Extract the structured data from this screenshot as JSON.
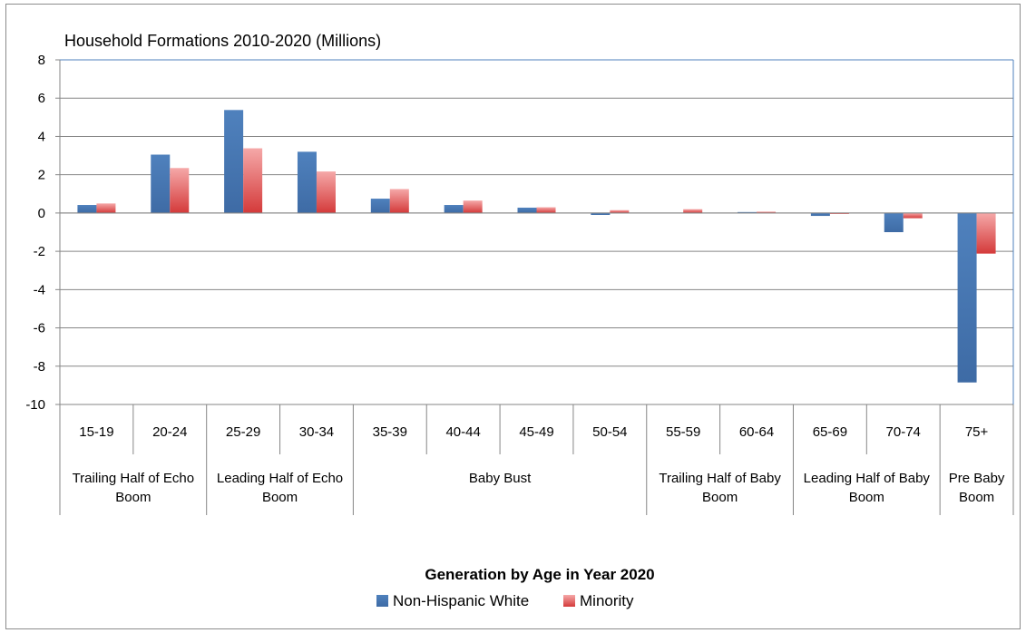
{
  "chart_data": {
    "type": "bar",
    "title": "Household Formations 2010-2020 (Millions)",
    "xlabel": "Generation by Age in Year 2020",
    "ylabel": "",
    "ylim": [
      -10,
      8
    ],
    "yticks": [
      8,
      6,
      4,
      2,
      0,
      -2,
      -4,
      -6,
      -8,
      -10
    ],
    "grid": true,
    "legend_position": "bottom",
    "categories": [
      "15-19",
      "20-24",
      "25-29",
      "30-34",
      "35-39",
      "40-44",
      "45-49",
      "50-54",
      "55-59",
      "60-64",
      "65-69",
      "70-74",
      "75+"
    ],
    "groups": [
      {
        "label_lines": [
          "Trailing Half of Echo",
          "Boom"
        ],
        "span": 2
      },
      {
        "label_lines": [
          "Leading Half of Echo",
          "Boom"
        ],
        "span": 2
      },
      {
        "label_lines": [
          "Baby Bust"
        ],
        "span": 4
      },
      {
        "label_lines": [
          "Trailing Half of Baby",
          "Boom"
        ],
        "span": 2
      },
      {
        "label_lines": [
          "Leading Half of Baby",
          "Boom"
        ],
        "span": 2
      },
      {
        "label_lines": [
          "Pre Baby",
          "Boom"
        ],
        "span": 1
      }
    ],
    "series": [
      {
        "name": "Non-Hispanic White",
        "color": "#4f81bd",
        "values": [
          0.42,
          3.05,
          5.38,
          3.2,
          0.75,
          0.42,
          0.28,
          -0.1,
          0.0,
          0.05,
          -0.15,
          -1.0,
          -8.85
        ]
      },
      {
        "name": "Minority",
        "color": "#e05a5a",
        "values": [
          0.5,
          2.35,
          3.38,
          2.17,
          1.25,
          0.65,
          0.3,
          0.15,
          0.2,
          0.07,
          -0.03,
          -0.27,
          -2.12
        ]
      }
    ]
  }
}
